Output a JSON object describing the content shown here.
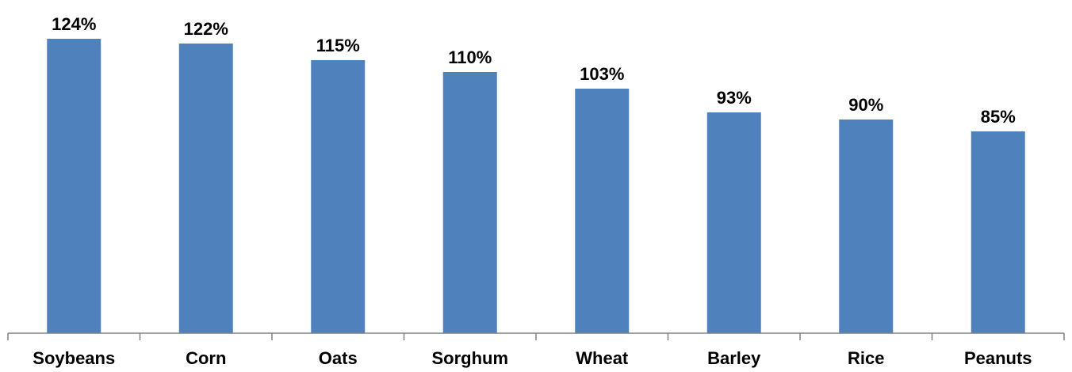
{
  "chart_data": {
    "type": "bar",
    "categories": [
      "Soybeans",
      "Corn",
      "Oats",
      "Sorghum",
      "Wheat",
      "Barley",
      "Rice",
      "Peanuts"
    ],
    "values": [
      124,
      122,
      115,
      110,
      103,
      93,
      90,
      85
    ],
    "data_labels": [
      "124%",
      "122%",
      "115%",
      "110%",
      "103%",
      "93%",
      "90%",
      "85%"
    ],
    "ylim": [
      0,
      130
    ],
    "grid": false,
    "legend": "none",
    "bar_color": "#4f81bd"
  }
}
